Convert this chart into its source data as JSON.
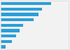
{
  "values": [
    100,
    82,
    75,
    65,
    45,
    38,
    30,
    22,
    10
  ],
  "bar_color": "#2b9fd8",
  "background_color": "#f2f2f2",
  "plot_bg_color": "#ffffff",
  "border_color": "#d9d9d9",
  "max_val": 135,
  "bar_height": 0.55
}
